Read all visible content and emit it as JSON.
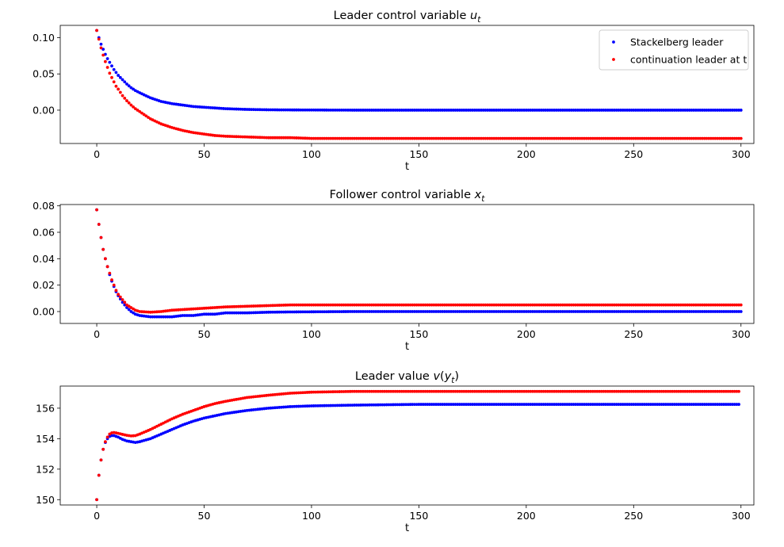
{
  "chart_data": [
    {
      "type": "scatter",
      "title": "Leader control variable u_t",
      "title_main": "Leader control variable ",
      "title_var": "u",
      "title_sub": "t",
      "xlabel": "t",
      "xlim": [
        -17,
        306
      ],
      "ylim": [
        -0.046,
        0.117
      ],
      "xticks": [
        0,
        50,
        100,
        150,
        200,
        250,
        300
      ],
      "xtick_labels": [
        "0",
        "50",
        "100",
        "150",
        "200",
        "250",
        "300"
      ],
      "yticks": [
        0.0,
        0.05,
        0.1
      ],
      "ytick_labels": [
        "0.00",
        "0.05",
        "0.10"
      ],
      "legend": "upper right",
      "grid": false,
      "series": [
        {
          "name": "Stackelberg leader",
          "color": "#0000ff",
          "t": [
            0,
            1,
            2,
            3,
            4,
            5,
            6,
            7,
            8,
            9,
            10,
            12,
            14,
            16,
            18,
            20,
            25,
            30,
            35,
            40,
            45,
            50,
            55,
            60,
            70,
            80,
            90,
            100,
            120,
            150,
            200,
            250,
            300
          ],
          "values": [
            0.11,
            0.1,
            0.091,
            0.084,
            0.077,
            0.071,
            0.066,
            0.061,
            0.056,
            0.052,
            0.048,
            0.042,
            0.036,
            0.031,
            0.027,
            0.024,
            0.017,
            0.012,
            0.009,
            0.007,
            0.005,
            0.004,
            0.003,
            0.002,
            0.001,
            0.0005,
            0.0003,
            0.0002,
            0.0,
            0.0,
            0.0,
            0.0,
            0.0
          ]
        },
        {
          "name": "continuation leader at t",
          "color": "#ff0000",
          "t": [
            0,
            1,
            2,
            3,
            4,
            5,
            6,
            7,
            8,
            9,
            10,
            12,
            14,
            16,
            18,
            20,
            25,
            30,
            35,
            40,
            45,
            50,
            55,
            60,
            70,
            80,
            90,
            100,
            120,
            150,
            200,
            250,
            300
          ],
          "values": [
            0.11,
            0.098,
            0.086,
            0.076,
            0.067,
            0.059,
            0.051,
            0.045,
            0.039,
            0.033,
            0.029,
            0.02,
            0.013,
            0.007,
            0.002,
            -0.002,
            -0.012,
            -0.019,
            -0.024,
            -0.028,
            -0.031,
            -0.033,
            -0.035,
            -0.036,
            -0.037,
            -0.038,
            -0.038,
            -0.039,
            -0.039,
            -0.039,
            -0.039,
            -0.039,
            -0.039
          ]
        }
      ]
    },
    {
      "type": "scatter",
      "title": "Follower control variable x_t",
      "title_main": "Follower control variable ",
      "title_var": "x",
      "title_sub": "t",
      "xlabel": "t",
      "xlim": [
        -17,
        306
      ],
      "ylim": [
        -0.009,
        0.081
      ],
      "xticks": [
        0,
        50,
        100,
        150,
        200,
        250,
        300
      ],
      "xtick_labels": [
        "0",
        "50",
        "100",
        "150",
        "200",
        "250",
        "300"
      ],
      "yticks": [
        0.0,
        0.02,
        0.04,
        0.06,
        0.08
      ],
      "ytick_labels": [
        "0.00",
        "0.02",
        "0.04",
        "0.06",
        "0.08"
      ],
      "grid": false,
      "series": [
        {
          "name": "Stackelberg leader",
          "color": "#0000ff",
          "t": [
            0,
            1,
            2,
            3,
            4,
            5,
            6,
            7,
            8,
            9,
            10,
            12,
            14,
            16,
            18,
            20,
            25,
            30,
            35,
            40,
            45,
            50,
            55,
            60,
            70,
            80,
            90,
            100,
            120,
            150,
            200,
            250,
            300
          ],
          "values": [
            0.077,
            0.066,
            0.056,
            0.047,
            0.04,
            0.034,
            0.028,
            0.023,
            0.019,
            0.015,
            0.012,
            0.007,
            0.003,
            0.0,
            -0.002,
            -0.003,
            -0.004,
            -0.004,
            -0.004,
            -0.003,
            -0.003,
            -0.002,
            -0.002,
            -0.001,
            -0.001,
            -0.0005,
            -0.0003,
            -0.0002,
            0.0,
            0.0,
            0.0,
            0.0,
            0.0
          ]
        },
        {
          "name": "continuation leader at t",
          "color": "#ff0000",
          "t": [
            0,
            1,
            2,
            3,
            4,
            5,
            6,
            7,
            8,
            9,
            10,
            12,
            14,
            16,
            18,
            20,
            25,
            30,
            35,
            40,
            45,
            50,
            55,
            60,
            70,
            80,
            90,
            100,
            120,
            150,
            200,
            250,
            300
          ],
          "values": [
            0.077,
            0.066,
            0.056,
            0.047,
            0.04,
            0.034,
            0.029,
            0.024,
            0.02,
            0.016,
            0.013,
            0.009,
            0.005,
            0.003,
            0.001,
            0.0,
            -0.0005,
            0.0,
            0.001,
            0.0015,
            0.002,
            0.0025,
            0.003,
            0.0035,
            0.004,
            0.0045,
            0.005,
            0.005,
            0.005,
            0.005,
            0.005,
            0.005,
            0.005
          ]
        }
      ]
    },
    {
      "type": "scatter",
      "title": "Leader value v(y_t)",
      "title_main": "Leader value ",
      "title_var": "v",
      "title_post_open": "(",
      "title_var2": "y",
      "title_sub": "t",
      "title_post_close": ")",
      "xlabel": "t",
      "xlim": [
        -17,
        306
      ],
      "ylim": [
        149.65,
        157.45
      ],
      "xticks": [
        0,
        50,
        100,
        150,
        200,
        250,
        300
      ],
      "xtick_labels": [
        "0",
        "50",
        "100",
        "150",
        "200",
        "250",
        "300"
      ],
      "yticks": [
        150,
        152,
        154,
        156
      ],
      "ytick_labels": [
        "150",
        "152",
        "154",
        "156"
      ],
      "grid": false,
      "series": [
        {
          "name": "Stackelberg leader",
          "color": "#0000ff",
          "t": [
            0,
            1,
            2,
            3,
            4,
            5,
            6,
            7,
            8,
            9,
            10,
            12,
            14,
            16,
            18,
            20,
            25,
            30,
            35,
            40,
            45,
            50,
            55,
            60,
            70,
            80,
            90,
            100,
            120,
            150,
            200,
            250,
            299
          ],
          "values": [
            150.0,
            151.6,
            152.6,
            153.3,
            153.75,
            154.0,
            154.15,
            154.2,
            154.2,
            154.15,
            154.1,
            153.95,
            153.85,
            153.8,
            153.75,
            153.8,
            154.0,
            154.3,
            154.6,
            154.9,
            155.15,
            155.35,
            155.5,
            155.65,
            155.85,
            156.0,
            156.1,
            156.15,
            156.2,
            156.25,
            156.25,
            156.25,
            156.25
          ]
        },
        {
          "name": "continuation leader at t",
          "color": "#ff0000",
          "t": [
            0,
            1,
            2,
            3,
            4,
            5,
            6,
            7,
            8,
            9,
            10,
            12,
            14,
            16,
            18,
            20,
            25,
            30,
            35,
            40,
            45,
            50,
            55,
            60,
            70,
            80,
            90,
            100,
            120,
            150,
            200,
            250,
            299
          ],
          "values": [
            150.0,
            151.6,
            152.6,
            153.3,
            153.8,
            154.1,
            154.3,
            154.38,
            154.4,
            154.38,
            154.35,
            154.28,
            154.22,
            154.18,
            154.2,
            154.3,
            154.6,
            154.95,
            155.3,
            155.6,
            155.85,
            156.1,
            156.3,
            156.45,
            156.7,
            156.85,
            156.98,
            157.05,
            157.1,
            157.1,
            157.1,
            157.1,
            157.1
          ]
        }
      ]
    }
  ]
}
